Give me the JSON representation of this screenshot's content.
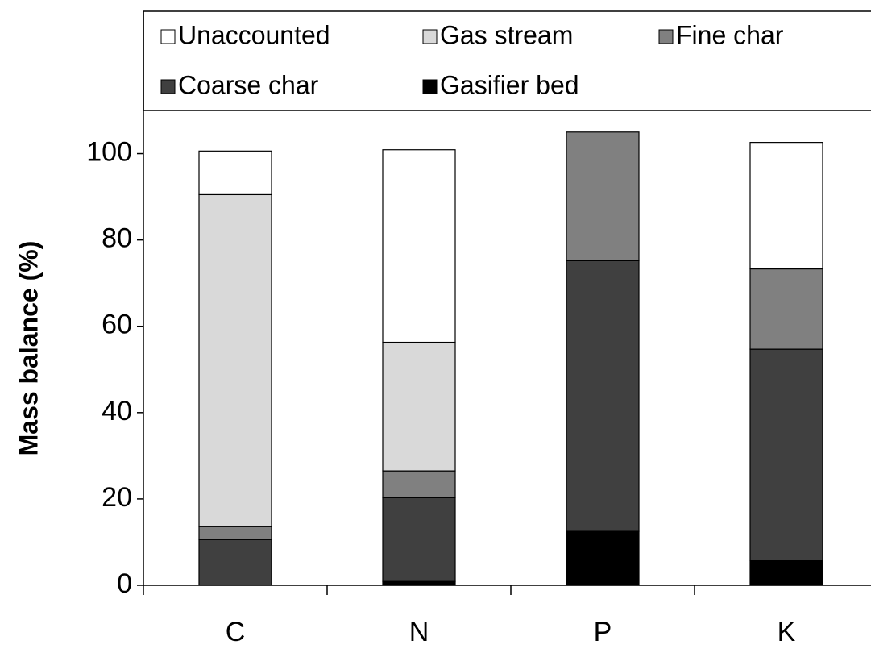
{
  "chart_data": {
    "type": "stacked_bar",
    "ylabel": "Mass balance (%)",
    "categories": [
      "C",
      "N",
      "P",
      "K"
    ],
    "series": [
      {
        "name": "Gasifier bed",
        "color": "#000000",
        "values": [
          0,
          0.9,
          12.5,
          5.8
        ]
      },
      {
        "name": "Coarse char",
        "color": "#404040",
        "values": [
          10.6,
          19.4,
          62.7,
          48.9
        ]
      },
      {
        "name": "Fine char",
        "color": "#808080",
        "values": [
          3.0,
          6.2,
          29.8,
          18.6
        ]
      },
      {
        "name": "Gas stream",
        "color": "#d9d9d9",
        "values": [
          76.9,
          29.8,
          0,
          0
        ]
      },
      {
        "name": "Unaccounted",
        "color": "#ffffff",
        "values": [
          10.1,
          44.6,
          0,
          29.3
        ]
      }
    ],
    "legend_order": [
      "Unaccounted",
      "Gas stream",
      "Fine char",
      "Coarse char",
      "Gasifier bed"
    ],
    "legend": "top",
    "ylim": [
      0,
      110
    ],
    "yticks": [
      0,
      20,
      40,
      60,
      80,
      100
    ],
    "grid": false
  }
}
